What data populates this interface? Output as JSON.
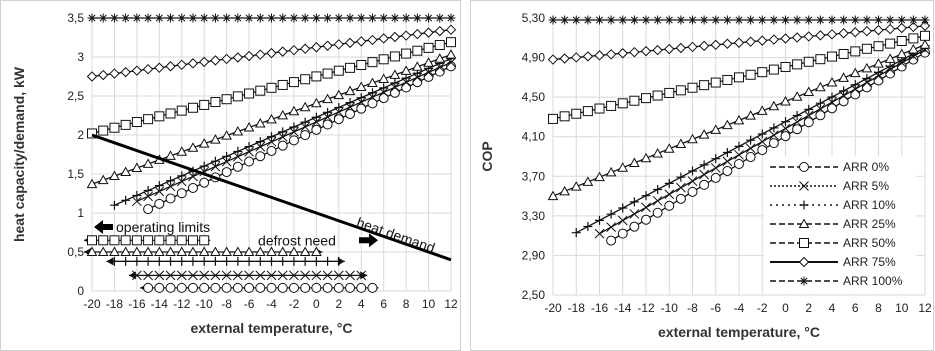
{
  "chart_data": [
    {
      "type": "line",
      "xlabel": "external temperature, °C",
      "ylabel": "heat capacity/demand, kW",
      "xlim": [
        -20,
        12
      ],
      "ylim": [
        0,
        3.5
      ],
      "xticks": [
        -20,
        -18,
        -16,
        -14,
        -12,
        -10,
        -8,
        -6,
        -4,
        -2,
        0,
        2,
        4,
        6,
        8,
        10,
        12
      ],
      "yticks": [
        "0",
        "0,5",
        "1",
        "1,5",
        "2",
        "2,5",
        "3",
        "3,5"
      ],
      "grid": true,
      "series": [
        {
          "marker": "circle",
          "x_start": -15,
          "x_end": 12,
          "y_start": 1.05,
          "y_end": 2.88
        },
        {
          "marker": "x",
          "x_start": -16,
          "x_end": 12,
          "y_start": 1.15,
          "y_end": 2.93
        },
        {
          "marker": "plus",
          "x_start": -18,
          "x_end": 12,
          "y_start": 1.1,
          "y_end": 2.98
        },
        {
          "marker": "triangle",
          "x_start": -20,
          "x_end": 12,
          "y_start": 1.37,
          "y_end": 3.03
        },
        {
          "marker": "square",
          "x_start": -20,
          "x_end": 12,
          "y_start": 2.02,
          "y_end": 3.19
        },
        {
          "marker": "diamond",
          "x_start": -20,
          "x_end": 12,
          "y_start": 2.75,
          "y_end": 3.35
        },
        {
          "marker": "star",
          "x_start": -20,
          "x_end": 12,
          "y_start": 3.5,
          "y_end": 3.5
        }
      ],
      "heat_demand": {
        "x": [
          -20,
          12
        ],
        "y": [
          2.0,
          0.4
        ],
        "label": "heat demand"
      },
      "limit_lines": [
        {
          "marker": "square",
          "y": 0.65,
          "x_start": -20,
          "x_end": -10
        },
        {
          "marker": "triangle",
          "y": 0.5,
          "x_start": -20,
          "x_end": 0
        },
        {
          "marker": "plus",
          "y": 0.38,
          "x_start": -18,
          "x_end": 2
        },
        {
          "marker": "x",
          "y": 0.2,
          "x_start": -16,
          "x_end": 4
        },
        {
          "marker": "circle",
          "y": 0.04,
          "x_start": -15,
          "x_end": 5
        }
      ],
      "annotations": {
        "operating_limits": "operating limits",
        "defrost_need": "defrost need"
      }
    },
    {
      "type": "line",
      "xlabel": "external temperature, °C",
      "ylabel": "COP",
      "xlim": [
        -20,
        12
      ],
      "ylim": [
        2.5,
        5.3
      ],
      "xticks": [
        -20,
        -18,
        -16,
        -14,
        -12,
        -10,
        -8,
        -6,
        -4,
        -2,
        0,
        2,
        4,
        6,
        8,
        10,
        12
      ],
      "yticks": [
        "2,50",
        "2,90",
        "3,30",
        "3,70",
        "4,10",
        "4,50",
        "4,90",
        "5,30"
      ],
      "grid": true,
      "series": [
        {
          "name": "ARR 0%",
          "marker": "circle",
          "x_start": -15,
          "x_end": 12,
          "y_start": 3.05,
          "y_end": 4.95
        },
        {
          "name": "ARR 5%",
          "marker": "x",
          "x_start": -16,
          "x_end": 12,
          "y_start": 3.12,
          "y_end": 4.98
        },
        {
          "name": "ARR 10%",
          "marker": "plus",
          "x_start": -18,
          "x_end": 12,
          "y_start": 3.13,
          "y_end": 5.0
        },
        {
          "name": "ARR 25%",
          "marker": "triangle",
          "x_start": -20,
          "x_end": 12,
          "y_start": 3.5,
          "y_end": 5.03
        },
        {
          "name": "ARR 50%",
          "marker": "square",
          "x_start": -20,
          "x_end": 12,
          "y_start": 4.28,
          "y_end": 5.12
        },
        {
          "name": "ARR 75%",
          "marker": "diamond",
          "x_start": -20,
          "x_end": 12,
          "y_start": 4.88,
          "y_end": 5.22
        },
        {
          "name": "ARR 100%",
          "marker": "star",
          "x_start": -20,
          "x_end": 12,
          "y_start": 5.28,
          "y_end": 5.28
        }
      ],
      "legend_position": "bottom-right"
    }
  ]
}
